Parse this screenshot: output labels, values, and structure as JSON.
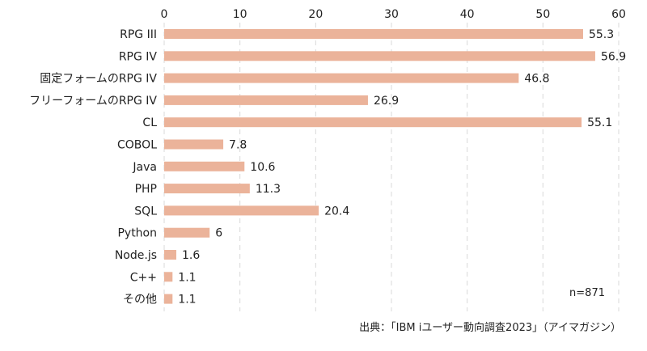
{
  "chart_data": {
    "type": "bar",
    "orientation": "horizontal",
    "categories": [
      "RPG III",
      "RPG IV",
      "固定フォームのRPG IV",
      "フリーフォームのRPG IV",
      "CL",
      "COBOL",
      "Java",
      "PHP",
      "SQL",
      "Python",
      "Node.js",
      "C++",
      "その他"
    ],
    "values": [
      55.3,
      56.9,
      46.8,
      26.9,
      55.1,
      7.8,
      10.6,
      11.3,
      20.4,
      6,
      1.6,
      1.1,
      1.1
    ],
    "value_labels": [
      "55.3",
      "56.9",
      "46.8",
      "26.9",
      "55.1",
      "7.8",
      "10.6",
      "11.3",
      "20.4",
      "6",
      "1.6",
      "1.1",
      "1.1"
    ],
    "xlim": [
      0,
      60
    ],
    "xticks": [
      0,
      10,
      20,
      30,
      40,
      50,
      60
    ],
    "tick_labels": [
      "0",
      "10",
      "20",
      "30",
      "40",
      "50",
      "60"
    ],
    "x_axis_position": "top",
    "grid": "vertical dashed",
    "bar_color": "#EBB39A",
    "grid_color": "#D9D9D9",
    "text_color": "#222222",
    "sample_note": "n=871",
    "source": "出典：「IBM iユーザー動向調査2023」（アイマガジン）"
  }
}
